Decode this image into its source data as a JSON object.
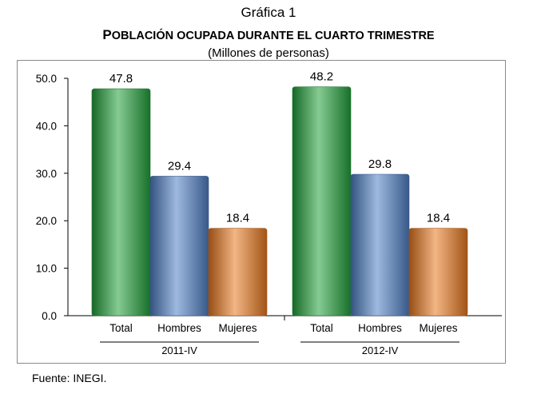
{
  "title": {
    "line1": "Gráfica 1",
    "line2": "Población ocupada durante el cuarto trimestre",
    "line3": "(Millones de personas)"
  },
  "source": "Fuente: INEGI.",
  "chart_data": {
    "type": "bar",
    "ylim": [
      0,
      50
    ],
    "yticks": [
      "0.0",
      "10.0",
      "20.0",
      "30.0",
      "40.0",
      "50.0"
    ],
    "groups": [
      {
        "name": "2011-IV",
        "categories": [
          "Total",
          "Hombres",
          "Mujeres"
        ],
        "values": [
          47.8,
          29.4,
          18.4
        ],
        "labels": [
          "47.8",
          "29.4",
          "18.4"
        ]
      },
      {
        "name": "2012-IV",
        "categories": [
          "Total",
          "Hombres",
          "Mujeres"
        ],
        "values": [
          48.2,
          29.8,
          18.4
        ],
        "labels": [
          "48.2",
          "29.8",
          "18.4"
        ]
      }
    ],
    "colors": {
      "Total": "#22a03a",
      "Hombres": "#4f7fc4",
      "Mujeres": "#e8781f"
    },
    "grid": false,
    "legend": "none"
  }
}
